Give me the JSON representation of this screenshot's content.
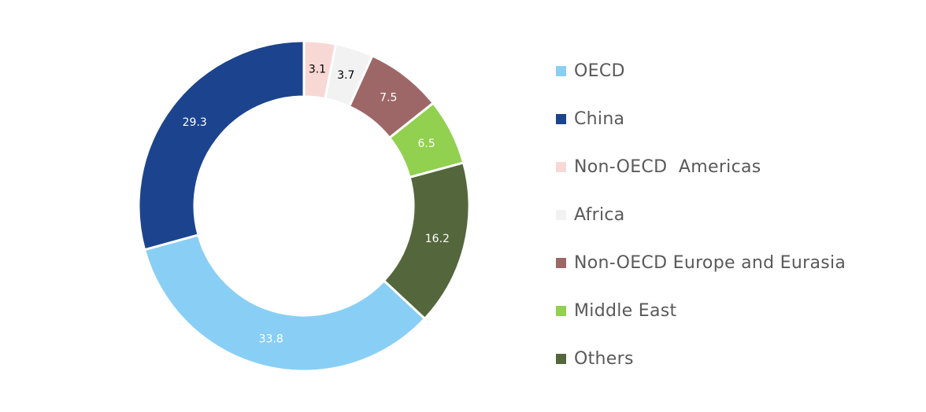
{
  "chart_data": {
    "type": "pie",
    "variant": "donut",
    "start": "top",
    "direction": "clockwise",
    "legend_position": "right",
    "slices": [
      {
        "name": "Non-OECD  Americas",
        "value": 3.1,
        "color": "#F8D8D5",
        "label_color": "#000000"
      },
      {
        "name": "Africa",
        "value": 3.7,
        "color": "#F2F2F2",
        "label_color": "#000000"
      },
      {
        "name": "Non-OECD Europe and Eurasia",
        "value": 7.5,
        "color": "#9E6767",
        "label_color": "#FFFFFF"
      },
      {
        "name": "Middle East",
        "value": 6.5,
        "color": "#92D050",
        "label_color": "#FFFFFF"
      },
      {
        "name": "Others",
        "value": 16.2,
        "color": "#54673C",
        "label_color": "#FFFFFF"
      },
      {
        "name": "OECD",
        "value": 33.8,
        "color": "#89CFF5",
        "label_color": "#FFFFFF"
      },
      {
        "name": "China",
        "value": 29.3,
        "color": "#1C448E",
        "label_color": "#FFFFFF"
      }
    ],
    "legend_order": [
      "OECD",
      "China",
      "Non-OECD  Americas",
      "Africa",
      "Non-OECD Europe and Eurasia",
      "Middle East",
      "Others"
    ]
  }
}
